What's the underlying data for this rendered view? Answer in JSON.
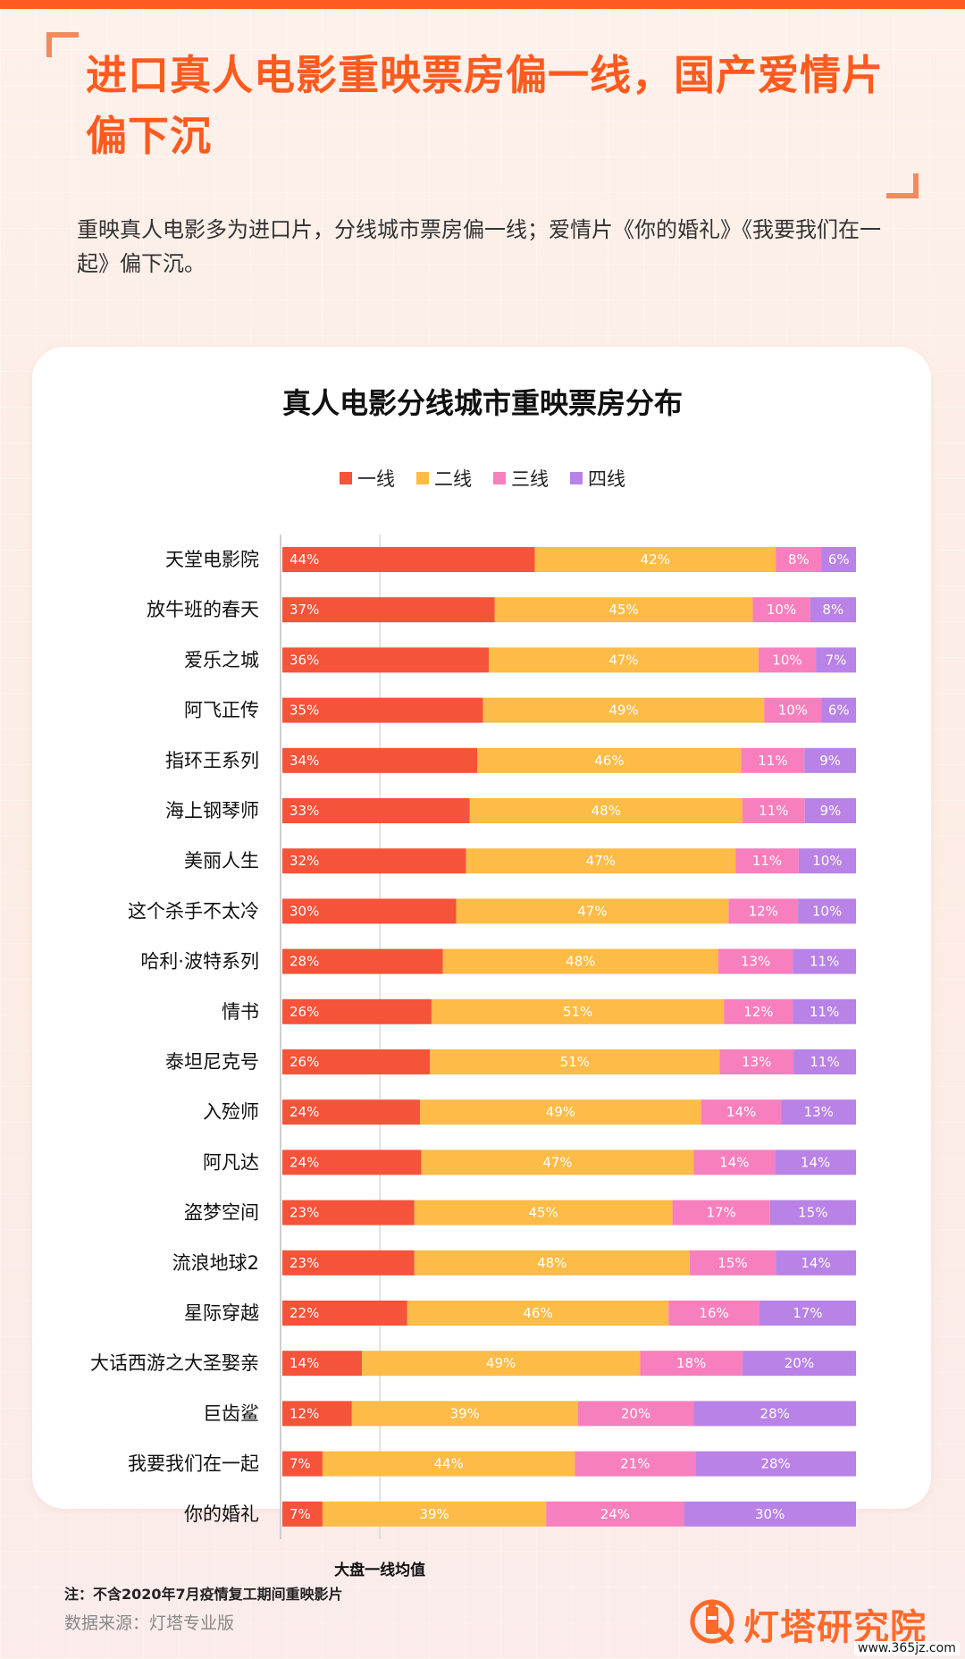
{
  "header": {
    "title": "进口真人电影重映票房偏一线，国产爱情片偏下沉",
    "subtitle": "重映真人电影多为进口片，分线城市票房偏一线；爱情片《你的婚礼》《我要我们在一起》偏下沉。"
  },
  "colors": {
    "accent": "#ff5a1f",
    "tier1": "#f5533a",
    "tier2": "#fdbb47",
    "tier3": "#f77fbd",
    "tier4": "#b882e6"
  },
  "chart_data": {
    "type": "bar",
    "orientation": "horizontal",
    "stacked": true,
    "title": "真人电影分线城市重映票房分布",
    "legend_position": "top",
    "categories": [
      "天堂电影院",
      "放牛班的春天",
      "爱乐之城",
      "阿飞正传",
      "指环王系列",
      "海上钢琴师",
      "美丽人生",
      "这个杀手不太冷",
      "哈利·波特系列",
      "情书",
      "泰坦尼克号",
      "入殓师",
      "阿凡达",
      "盗梦空间",
      "流浪地球2",
      "星际穿越",
      "大话西游之大圣娶亲",
      "巨齿鲨",
      "我要我们在一起",
      "你的婚礼"
    ],
    "series": [
      {
        "name": "一线",
        "values": [
          44,
          37,
          36,
          35,
          34,
          33,
          32,
          30,
          28,
          26,
          26,
          24,
          24,
          23,
          23,
          22,
          14,
          12,
          7,
          7
        ]
      },
      {
        "name": "二线",
        "values": [
          42,
          45,
          47,
          49,
          46,
          48,
          47,
          47,
          48,
          51,
          51,
          49,
          47,
          45,
          48,
          46,
          49,
          39,
          44,
          39
        ]
      },
      {
        "name": "三线",
        "values": [
          8,
          10,
          10,
          10,
          11,
          11,
          11,
          12,
          13,
          12,
          13,
          14,
          14,
          17,
          15,
          16,
          18,
          20,
          21,
          24
        ]
      },
      {
        "name": "四线",
        "values": [
          6,
          8,
          7,
          6,
          9,
          9,
          10,
          10,
          11,
          11,
          11,
          13,
          14,
          15,
          14,
          17,
          20,
          28,
          28,
          30
        ]
      }
    ],
    "reference_line": {
      "label": "大盘一线均值",
      "value": 17
    },
    "xlim": [
      0,
      100
    ]
  },
  "footer": {
    "note": "注：不含2020年7月疫情复工期间重映影片",
    "source": "数据来源：灯塔专业版",
    "brand": "灯塔研究院",
    "url": "www.365jz.com"
  }
}
